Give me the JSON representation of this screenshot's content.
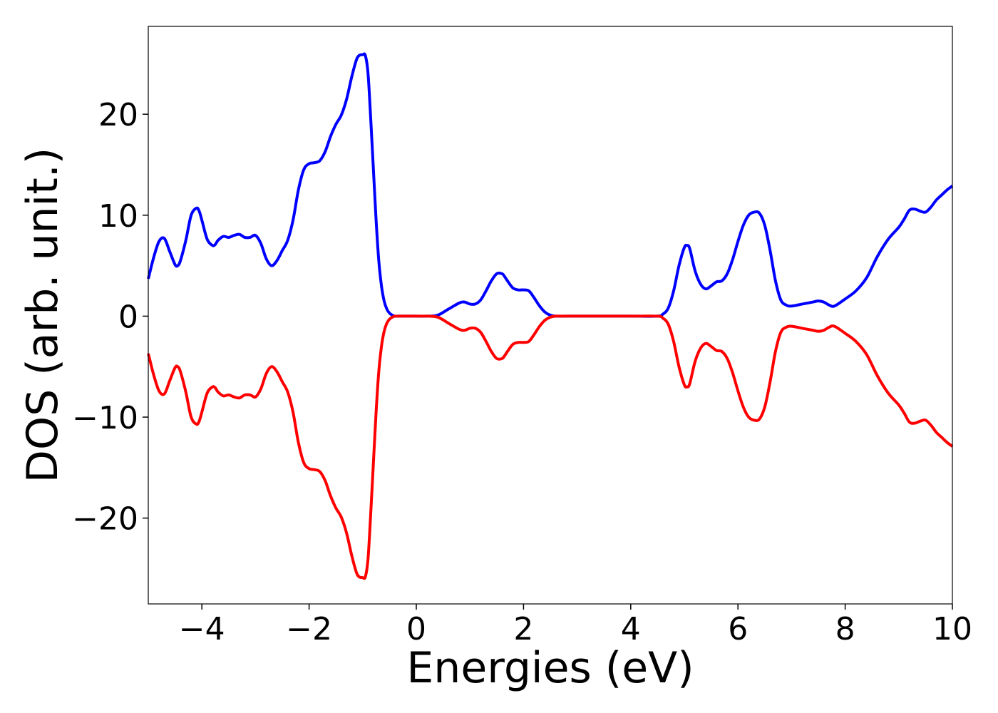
{
  "chart_data": {
    "type": "line",
    "title": "",
    "xlabel": "Energies (eV)",
    "ylabel": "DOS (arb. unit.)",
    "xlim": [
      -5,
      10
    ],
    "ylim": [
      -28.5,
      28.7
    ],
    "xticks": [
      -4,
      -2,
      0,
      2,
      4,
      6,
      8,
      10
    ],
    "xtick_labels": [
      "−4",
      "−2",
      "0",
      "2",
      "4",
      "6",
      "8",
      "10"
    ],
    "yticks": [
      -20,
      -10,
      0,
      10,
      20
    ],
    "ytick_labels": [
      "−20",
      "−10",
      "0",
      "10",
      "20"
    ],
    "grid": false,
    "legend": "none",
    "series": [
      {
        "color": "#0000ff",
        "x": [
          -5.0,
          -4.9,
          -4.8,
          -4.7,
          -4.6,
          -4.5,
          -4.45,
          -4.4,
          -4.3,
          -4.2,
          -4.1,
          -4.05,
          -4.0,
          -3.9,
          -3.8,
          -3.75,
          -3.7,
          -3.6,
          -3.5,
          -3.4,
          -3.3,
          -3.2,
          -3.1,
          -3.0,
          -2.9,
          -2.8,
          -2.7,
          -2.6,
          -2.5,
          -2.4,
          -2.3,
          -2.2,
          -2.1,
          -2.0,
          -1.9,
          -1.8,
          -1.7,
          -1.6,
          -1.5,
          -1.4,
          -1.3,
          -1.2,
          -1.1,
          -1.0,
          -0.95,
          -0.9,
          -0.85,
          -0.8,
          -0.75,
          -0.7,
          -0.65,
          -0.6,
          -0.55,
          -0.5,
          -0.45,
          -0.4,
          -0.35,
          -0.3,
          -0.2,
          -0.1,
          0.0,
          0.2,
          0.4,
          0.6,
          0.8,
          0.9,
          1.0,
          1.1,
          1.2,
          1.3,
          1.4,
          1.5,
          1.6,
          1.65,
          1.7,
          1.8,
          1.9,
          2.0,
          2.1,
          2.2,
          2.3,
          2.4,
          2.5,
          2.6,
          2.8,
          3.0,
          3.5,
          4.0,
          4.5,
          4.6,
          4.7,
          4.8,
          4.9,
          5.0,
          5.05,
          5.1,
          5.2,
          5.3,
          5.4,
          5.5,
          5.6,
          5.7,
          5.8,
          5.9,
          6.0,
          6.1,
          6.2,
          6.3,
          6.4,
          6.5,
          6.6,
          6.7,
          6.8,
          6.9,
          7.0,
          7.2,
          7.4,
          7.5,
          7.6,
          7.7,
          7.8,
          8.0,
          8.2,
          8.4,
          8.6,
          8.8,
          9.0,
          9.1,
          9.2,
          9.3,
          9.4,
          9.5,
          9.6,
          9.7,
          9.8,
          9.9,
          10.0
        ],
        "y": [
          3.7,
          5.8,
          7.4,
          7.7,
          6.4,
          5.1,
          5.0,
          5.5,
          7.5,
          10.0,
          10.7,
          10.4,
          9.5,
          7.6,
          7.0,
          7.1,
          7.5,
          7.9,
          7.8,
          8.0,
          8.1,
          7.8,
          7.8,
          8.0,
          7.2,
          5.7,
          5.0,
          5.5,
          6.5,
          7.5,
          9.5,
          12.5,
          14.5,
          15.1,
          15.2,
          15.4,
          16.3,
          17.8,
          19.0,
          19.9,
          21.5,
          23.8,
          25.6,
          25.9,
          25.8,
          24.0,
          19.5,
          14.5,
          9.5,
          5.5,
          3.0,
          1.5,
          0.7,
          0.3,
          0.1,
          0.0,
          0.0,
          0.0,
          0.0,
          0.0,
          0.0,
          0.0,
          0.1,
          0.7,
          1.3,
          1.4,
          1.2,
          1.2,
          1.6,
          2.5,
          3.5,
          4.2,
          4.2,
          3.9,
          3.5,
          2.8,
          2.6,
          2.6,
          2.5,
          1.8,
          1.0,
          0.4,
          0.1,
          0.0,
          0.0,
          0.0,
          0.0,
          0.0,
          0.0,
          0.2,
          0.8,
          2.5,
          5.0,
          6.8,
          7.0,
          6.7,
          4.5,
          3.2,
          2.7,
          3.0,
          3.4,
          3.5,
          4.2,
          5.6,
          7.4,
          9.0,
          10.0,
          10.3,
          10.2,
          9.0,
          6.5,
          3.5,
          1.6,
          1.1,
          1.0,
          1.2,
          1.4,
          1.5,
          1.4,
          1.1,
          1.0,
          1.7,
          2.5,
          3.8,
          5.9,
          7.6,
          8.8,
          9.6,
          10.5,
          10.6,
          10.4,
          10.3,
          10.8,
          11.5,
          12.0,
          12.5,
          12.9
        ]
      },
      {
        "color": "#ff0000",
        "x": [
          -5.0,
          -4.9,
          -4.8,
          -4.7,
          -4.6,
          -4.5,
          -4.45,
          -4.4,
          -4.3,
          -4.2,
          -4.1,
          -4.05,
          -4.0,
          -3.9,
          -3.8,
          -3.75,
          -3.7,
          -3.6,
          -3.5,
          -3.4,
          -3.3,
          -3.2,
          -3.1,
          -3.0,
          -2.9,
          -2.8,
          -2.7,
          -2.6,
          -2.5,
          -2.4,
          -2.3,
          -2.2,
          -2.1,
          -2.0,
          -1.9,
          -1.8,
          -1.7,
          -1.6,
          -1.5,
          -1.4,
          -1.3,
          -1.2,
          -1.1,
          -1.0,
          -0.95,
          -0.9,
          -0.85,
          -0.8,
          -0.75,
          -0.7,
          -0.65,
          -0.6,
          -0.55,
          -0.5,
          -0.45,
          -0.4,
          -0.35,
          -0.3,
          -0.2,
          -0.1,
          0.0,
          0.2,
          0.4,
          0.6,
          0.8,
          0.9,
          1.0,
          1.1,
          1.2,
          1.3,
          1.4,
          1.5,
          1.6,
          1.65,
          1.7,
          1.8,
          1.9,
          2.0,
          2.1,
          2.2,
          2.3,
          2.4,
          2.5,
          2.6,
          2.8,
          3.0,
          3.5,
          4.0,
          4.5,
          4.6,
          4.7,
          4.8,
          4.9,
          5.0,
          5.05,
          5.1,
          5.2,
          5.3,
          5.4,
          5.5,
          5.6,
          5.7,
          5.8,
          5.9,
          6.0,
          6.1,
          6.2,
          6.3,
          6.4,
          6.5,
          6.6,
          6.7,
          6.8,
          6.9,
          7.0,
          7.2,
          7.4,
          7.5,
          7.6,
          7.7,
          7.8,
          8.0,
          8.2,
          8.4,
          8.6,
          8.8,
          9.0,
          9.1,
          9.2,
          9.3,
          9.4,
          9.5,
          9.6,
          9.7,
          9.8,
          9.9,
          10.0
        ],
        "y": [
          -3.7,
          -5.8,
          -7.4,
          -7.7,
          -6.4,
          -5.1,
          -5.0,
          -5.5,
          -7.5,
          -10.0,
          -10.7,
          -10.4,
          -9.5,
          -7.6,
          -7.0,
          -7.1,
          -7.5,
          -7.9,
          -7.8,
          -8.0,
          -8.1,
          -7.8,
          -7.8,
          -8.0,
          -7.2,
          -5.7,
          -5.0,
          -5.5,
          -6.5,
          -7.5,
          -9.5,
          -12.5,
          -14.5,
          -15.1,
          -15.2,
          -15.4,
          -16.3,
          -17.8,
          -19.0,
          -19.9,
          -21.5,
          -23.8,
          -25.6,
          -25.9,
          -25.8,
          -24.0,
          -19.5,
          -14.5,
          -9.5,
          -5.5,
          -3.0,
          -1.5,
          -0.7,
          -0.3,
          -0.1,
          0.0,
          0.0,
          0.0,
          0.0,
          0.0,
          0.0,
          0.0,
          -0.1,
          -0.7,
          -1.3,
          -1.4,
          -1.2,
          -1.2,
          -1.6,
          -2.5,
          -3.5,
          -4.2,
          -4.2,
          -3.9,
          -3.5,
          -2.8,
          -2.6,
          -2.6,
          -2.5,
          -1.8,
          -1.0,
          -0.4,
          -0.1,
          0.0,
          0.0,
          0.0,
          0.0,
          0.0,
          0.0,
          -0.2,
          -0.8,
          -2.5,
          -5.0,
          -6.8,
          -7.0,
          -6.7,
          -4.5,
          -3.2,
          -2.7,
          -3.0,
          -3.4,
          -3.5,
          -4.2,
          -5.6,
          -7.4,
          -9.0,
          -10.0,
          -10.3,
          -10.2,
          -9.0,
          -6.5,
          -3.5,
          -1.6,
          -1.1,
          -1.0,
          -1.2,
          -1.4,
          -1.5,
          -1.4,
          -1.1,
          -1.0,
          -1.7,
          -2.5,
          -3.8,
          -5.9,
          -7.6,
          -8.8,
          -9.6,
          -10.5,
          -10.6,
          -10.4,
          -10.3,
          -10.8,
          -11.5,
          -12.0,
          -12.5,
          -12.9
        ]
      }
    ]
  }
}
